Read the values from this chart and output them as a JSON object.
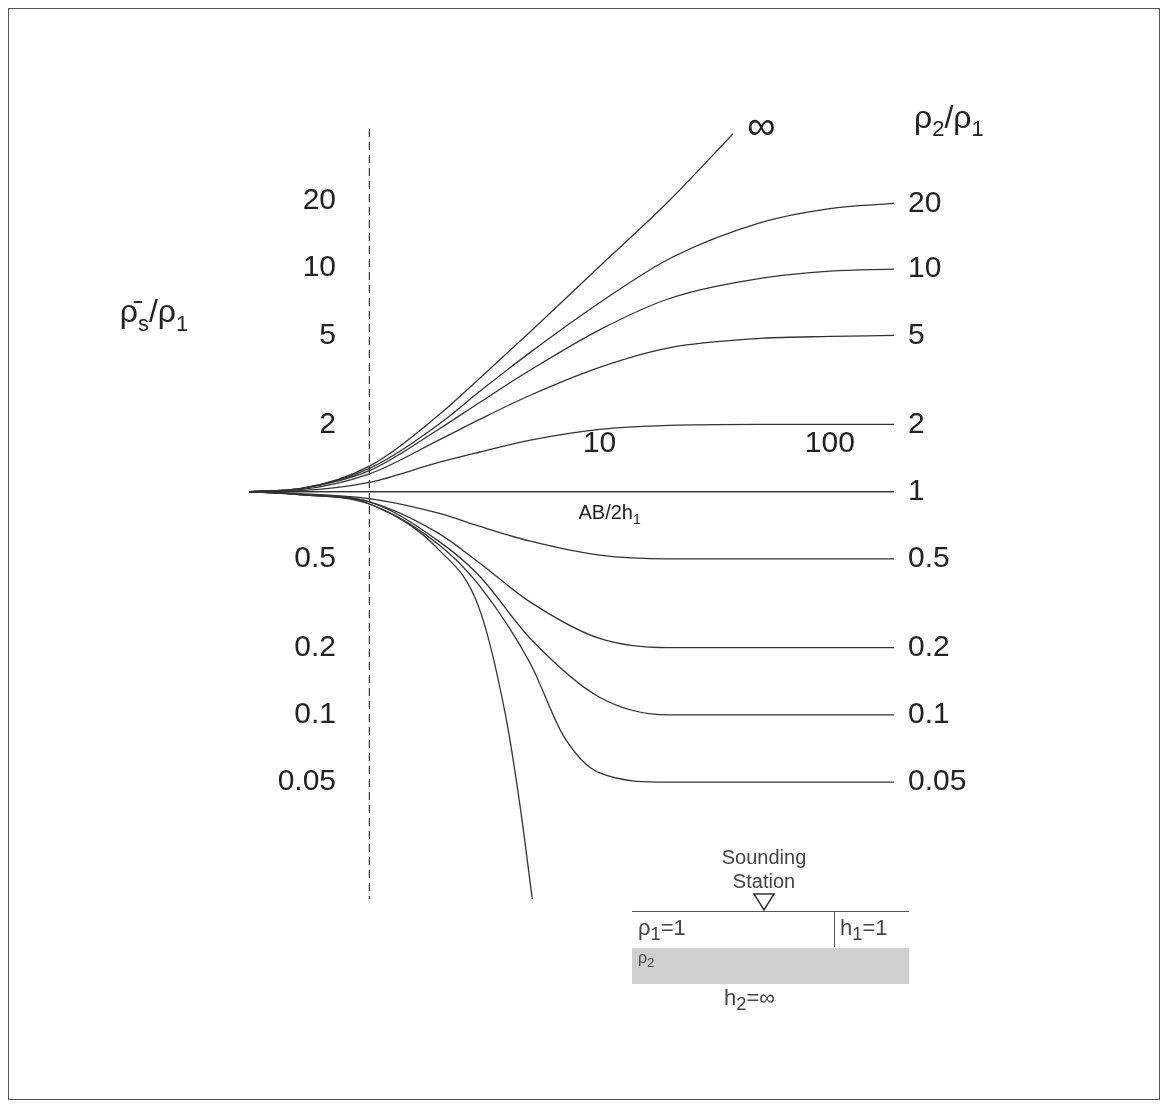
{
  "chart_data": {
    "type": "line",
    "xlabel": "AB/2h$_{1}$",
    "ylabel": "ρ̄$_{s}$/ρ$_{1}$",
    "legend_title": "ρ$_{2}$/ρ$_{1}$",
    "log": "xy",
    "grid": false,
    "legend": false,
    "marker": "none",
    "line_style": "solid",
    "xlim": [
      0.3,
      190
    ],
    "ylim": [
      0.015,
      42
    ],
    "xticks": [
      10,
      100
    ],
    "yticks": [
      0.05,
      0.1,
      0.2,
      0.5,
      2,
      5,
      10,
      20
    ],
    "series": [
      {
        "name": "∞",
        "color": "#333333",
        "x": [
          0.3,
          0.5,
          1,
          2,
          3,
          5,
          10,
          20,
          38
        ],
        "values": [
          1,
          1.03,
          1.3,
          2.2,
          3.2,
          5.2,
          10.2,
          20,
          40
        ]
      },
      {
        "name": "20",
        "color": "#333333",
        "x": [
          0.3,
          0.5,
          1,
          2,
          3,
          5,
          10,
          20,
          50,
          100,
          190
        ],
        "values": [
          1,
          1.03,
          1.27,
          2,
          2.8,
          4.2,
          7,
          11,
          16,
          18.5,
          19.5
        ]
      },
      {
        "name": "10",
        "color": "#333333",
        "x": [
          0.3,
          0.5,
          1,
          2,
          3,
          5,
          10,
          20,
          50,
          100,
          190
        ],
        "values": [
          1,
          1.03,
          1.24,
          1.9,
          2.5,
          3.5,
          5.3,
          7.3,
          9,
          9.7,
          9.9
        ]
      },
      {
        "name": "5",
        "color": "#333333",
        "x": [
          0.3,
          0.5,
          1,
          2,
          3,
          5,
          10,
          20,
          50,
          100,
          190
        ],
        "values": [
          1,
          1.02,
          1.2,
          1.7,
          2.1,
          2.7,
          3.6,
          4.4,
          4.85,
          4.95,
          5
        ]
      },
      {
        "name": "2",
        "color": "#333333",
        "x": [
          0.3,
          0.5,
          1,
          2,
          3,
          5,
          10,
          20,
          50,
          100,
          190
        ],
        "values": [
          1,
          1.01,
          1.1,
          1.35,
          1.5,
          1.7,
          1.9,
          1.98,
          2,
          2,
          2
        ]
      },
      {
        "name": "1",
        "color": "#333333",
        "x": [
          0.3,
          190
        ],
        "values": [
          1,
          1
        ]
      },
      {
        "name": "0.5",
        "color": "#333333",
        "x": [
          0.3,
          0.5,
          1,
          2,
          3,
          5,
          10,
          20,
          50,
          100,
          190
        ],
        "values": [
          1,
          0.98,
          0.93,
          0.8,
          0.7,
          0.6,
          0.52,
          0.5,
          0.5,
          0.5,
          0.5
        ]
      },
      {
        "name": "0.2",
        "color": "#333333",
        "x": [
          0.3,
          0.5,
          1,
          2,
          3,
          5,
          10,
          20,
          50,
          100,
          190
        ],
        "values": [
          1,
          0.97,
          0.9,
          0.65,
          0.48,
          0.32,
          0.22,
          0.2,
          0.2,
          0.2,
          0.2
        ]
      },
      {
        "name": "0.1",
        "color": "#333333",
        "x": [
          0.3,
          0.5,
          1,
          2,
          3,
          5,
          10,
          20,
          50,
          100,
          190
        ],
        "values": [
          1,
          0.97,
          0.9,
          0.6,
          0.42,
          0.22,
          0.12,
          0.1,
          0.1,
          0.1,
          0.1
        ]
      },
      {
        "name": "0.05",
        "color": "#333333",
        "x": [
          0.3,
          0.5,
          1,
          2,
          3,
          5,
          7,
          10,
          20,
          50,
          100,
          190
        ],
        "values": [
          1,
          0.97,
          0.88,
          0.58,
          0.38,
          0.17,
          0.08,
          0.055,
          0.05,
          0.05,
          0.05,
          0.05
        ]
      },
      {
        "color": "#333333",
        "x": [
          0.3,
          0.5,
          1,
          2,
          3,
          3.9,
          4.5,
          5.1
        ],
        "values": [
          1,
          0.97,
          0.88,
          0.55,
          0.3,
          0.1,
          0.04,
          0.015
        ]
      }
    ],
    "ref_lines": [
      {
        "axis": "x",
        "value": 1,
        "color": "#333333",
        "line_style": "dashed"
      },
      {
        "axis": "y",
        "value": 1,
        "color": "#333333",
        "line_style": "solid"
      }
    ],
    "annotations": [
      "Sounding Station",
      "ρ$_{1}$=1",
      "h$_{1}$=1",
      "ρ$_{2}$",
      "h$_{2}$=∞"
    ]
  }
}
